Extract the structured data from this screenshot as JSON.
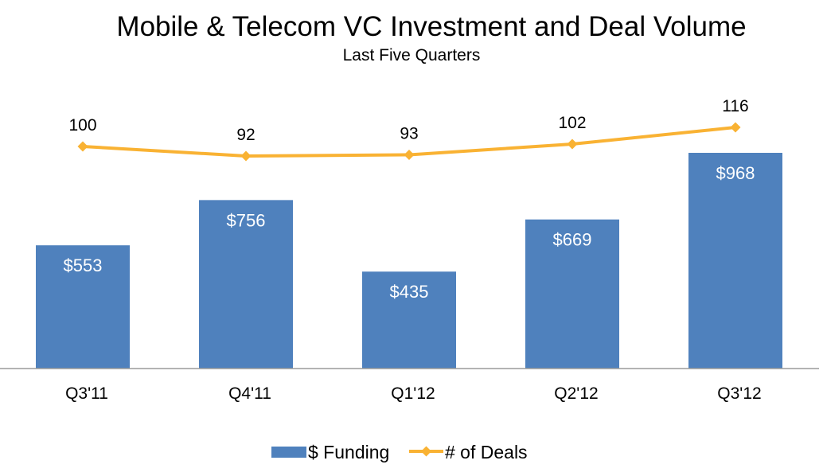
{
  "chart_data": {
    "type": "bar",
    "title": "Mobile & Telecom VC Investment and Deal Volume",
    "subtitle": "Last Five Quarters",
    "categories": [
      "Q3'11",
      "Q4'11",
      "Q1'12",
      "Q2'12",
      "Q3'12"
    ],
    "series": [
      {
        "name": "$ Funding",
        "type": "bar",
        "values": [
          553,
          756,
          435,
          669,
          968
        ],
        "labels": [
          "$553",
          "$756",
          "$435",
          "$669",
          "$968"
        ],
        "color": "#4f81bd"
      },
      {
        "name": "# of Deals",
        "type": "line",
        "values": [
          100,
          92,
          93,
          102,
          116
        ],
        "labels": [
          "100",
          "92",
          "93",
          "102",
          "116"
        ],
        "color": "#f9b233"
      }
    ],
    "legend_position": "bottom",
    "grid": false
  }
}
